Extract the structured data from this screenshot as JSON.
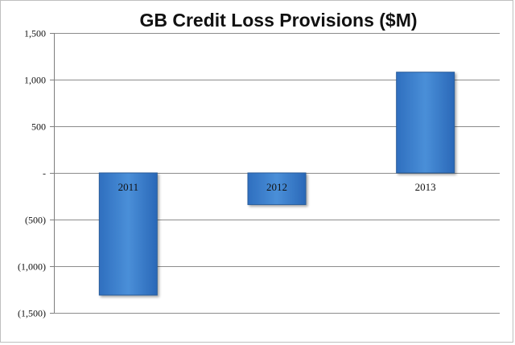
{
  "chart_data": {
    "type": "bar",
    "title": "GB Credit Loss Provisions ($M)",
    "xlabel": "",
    "ylabel": "",
    "categories": [
      "2011",
      "2012",
      "2013"
    ],
    "values": [
      -1310,
      -340,
      1080
    ],
    "ylim": [
      -1500,
      1500
    ],
    "yticks": [
      1500,
      1000,
      500,
      0,
      -500,
      -1000,
      -1500
    ],
    "ytick_labels": [
      "1,500",
      "1,000",
      "500",
      "-",
      "(500)",
      "(1,000)",
      "(1,500)"
    ],
    "grid": true,
    "legend": "none",
    "colors": {
      "bar_light": "#5b9bd5",
      "bar_mid": "#3a7cc9",
      "bar_dark": "#1f5fa8",
      "bar_edge": "#2a5d9a"
    }
  }
}
